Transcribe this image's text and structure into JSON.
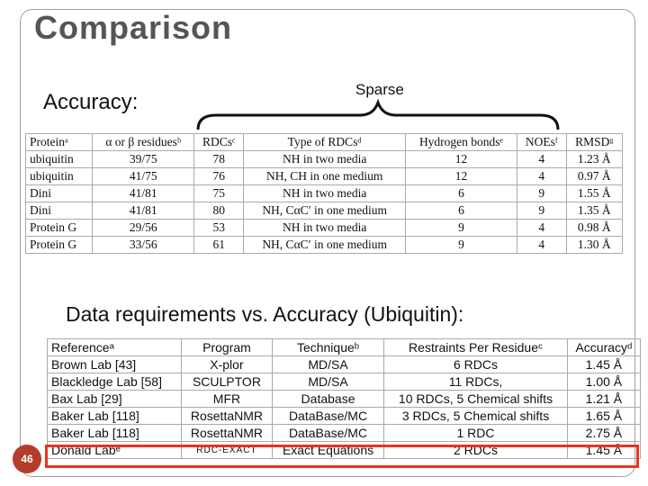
{
  "slide": {
    "title": "Comparison",
    "accuracy_label": "Accuracy:",
    "sparse_label": "Sparse",
    "data_req_label": "Data requirements vs. Accuracy (Ubiquitin):",
    "page_number": "46"
  },
  "table1": {
    "headers": [
      "Proteinᵃ",
      "α or β residuesᵇ",
      "RDCsᶜ",
      "Type of RDCsᵈ",
      "Hydrogen bondsᵉ",
      "NOEsᶠ",
      "RMSDᵍ"
    ],
    "rows": [
      [
        "ubiquitin",
        "39/75",
        "78",
        "NH in two media",
        "12",
        "4",
        "1.23 Å"
      ],
      [
        "ubiquitin",
        "41/75",
        "76",
        "NH, CH in one medium",
        "12",
        "4",
        "0.97 Å"
      ],
      [
        "Dini",
        "41/81",
        "75",
        "NH in two media",
        "6",
        "9",
        "1.55 Å"
      ],
      [
        "Dini",
        "41/81",
        "80",
        "NH, CαC′ in one medium",
        "6",
        "9",
        "1.35 Å"
      ],
      [
        "Protein G",
        "29/56",
        "53",
        "NH in two media",
        "9",
        "4",
        "0.98 Å"
      ],
      [
        "Protein G",
        "33/56",
        "61",
        "NH, CαC′ in one medium",
        "9",
        "4",
        "1.30 Å"
      ]
    ]
  },
  "table2": {
    "headers": [
      "Referenceᵃ",
      "Program",
      "Techniqueᵇ",
      "Restraints Per Residueᶜ",
      "Accuracyᵈ"
    ],
    "rows": [
      [
        "Brown Lab [43]",
        "X-plor",
        "MD/SA",
        "6 RDCs",
        "1.45 Å"
      ],
      [
        "Blackledge Lab [58]",
        "SCULPTOR",
        "MD/SA",
        "11 RDCs,",
        "1.00 Å"
      ],
      [
        "Bax Lab [29]",
        "MFR",
        "Database",
        "10 RDCs, 5 Chemical shifts",
        "1.21 Å"
      ],
      [
        "Baker Lab [118]",
        "RosettaNMR",
        "DataBase/MC",
        "3 RDCs, 5 Chemical shifts",
        "1.65 Å"
      ],
      [
        "Baker Lab [118]",
        "RosettaNMR",
        "DataBase/MC",
        "1 RDC",
        "2.75 Å"
      ],
      [
        "Donald Labᵉ",
        "RDC-EXACT",
        "Exact Equations",
        "2 RDCs",
        "1.45 Å"
      ]
    ]
  },
  "colors": {
    "highlight": "#e8341c",
    "title": "#555555",
    "page_badge": "#b33d2a"
  }
}
